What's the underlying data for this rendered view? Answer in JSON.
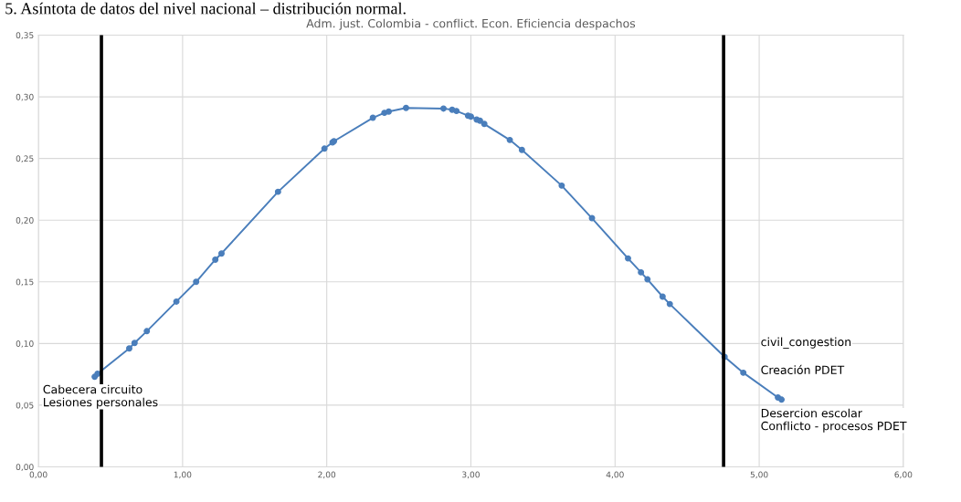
{
  "chart_data": {
    "type": "line",
    "title": "Adm. just. Colombia - conflict. Econ. Eficiencia despachos",
    "x": [
      0.39,
      0.41,
      0.63,
      0.667,
      0.752,
      0.957,
      1.094,
      1.227,
      1.27,
      1.662,
      1.984,
      2.04,
      2.05,
      2.32,
      2.4,
      2.43,
      2.55,
      2.81,
      2.87,
      2.9,
      2.98,
      3.0,
      3.04,
      3.063,
      3.093,
      3.27,
      3.354,
      3.63,
      3.84,
      4.09,
      4.18,
      4.225,
      4.33,
      4.38,
      4.76,
      4.89,
      5.13,
      5.155
    ],
    "series": [
      {
        "color": "#4a7ebb",
        "values": [
          0.073,
          0.0755,
          0.096,
          0.1005,
          0.11,
          0.134,
          0.15,
          0.168,
          0.173,
          0.223,
          0.258,
          0.263,
          0.264,
          0.283,
          0.287,
          0.288,
          0.291,
          0.2905,
          0.2895,
          0.2885,
          0.2847,
          0.284,
          0.2816,
          0.2806,
          0.278,
          0.265,
          0.257,
          0.228,
          0.2016,
          0.169,
          0.1577,
          0.152,
          0.138,
          0.132,
          0.0892,
          0.0763,
          0.0562,
          0.0545
        ]
      }
    ],
    "marker": "circle",
    "line_style": "solid",
    "grid": true,
    "xlim": [
      0,
      6
    ],
    "xticks": [
      {
        "value": 0,
        "label": "0,00"
      },
      {
        "value": 1,
        "label": "1,00"
      },
      {
        "value": 2,
        "label": "2,00"
      },
      {
        "value": 3,
        "label": "3,00"
      },
      {
        "value": 4,
        "label": "4,00"
      },
      {
        "value": 5,
        "label": "5,00"
      },
      {
        "value": 6,
        "label": "6,00"
      }
    ],
    "ylim": [
      0,
      0.35
    ],
    "yticks": [
      {
        "value": 0,
        "label": "0,00"
      },
      {
        "value": 0.05,
        "label": "0,05"
      },
      {
        "value": 0.1,
        "label": "0,10"
      },
      {
        "value": 0.15,
        "label": "0,15"
      },
      {
        "value": 0.2,
        "label": "0,20"
      },
      {
        "value": 0.25,
        "label": "0,25"
      },
      {
        "value": 0.3,
        "label": "0,30"
      },
      {
        "value": 0.35,
        "label": "0,35"
      }
    ],
    "ref_lines": [
      {
        "axis": "x",
        "value": 0.437,
        "color": "#000000"
      },
      {
        "axis": "x",
        "value": 4.753,
        "color": "#000000"
      }
    ],
    "annotations": [
      "5. Asíntota de datos del nivel nacional – distribución normal.",
      "Cabecera circuito\nLesiones personales",
      "civil_congestion",
      "Creación PDET",
      "Desercion escolar\nConflicto - procesos PDET"
    ]
  }
}
